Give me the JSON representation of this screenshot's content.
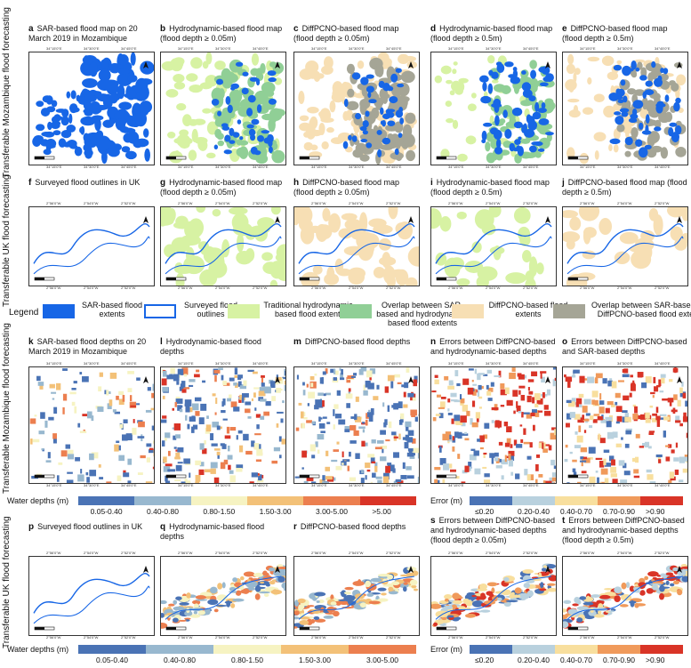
{
  "row_labels": {
    "r1": "Transferable Mozambique flood forecasting",
    "r2": "Transferable UK flood forecasting",
    "r3": "Transferable Mozambique flood forecasting",
    "r4": "Transferable UK flood forecasting"
  },
  "panels": {
    "a": {
      "letter": "a",
      "title": "SAR-based flood map on 20 March 2019 in Mozambique"
    },
    "b": {
      "letter": "b",
      "title": "Hydrodynamic-based flood map (flood depth ≥ 0.05m)"
    },
    "c": {
      "letter": "c",
      "title": "DiffPCNO-based flood map (flood depth ≥ 0.05m)"
    },
    "d": {
      "letter": "d",
      "title": "Hydrodynamic-based flood map (flood depth ≥ 0.5m)"
    },
    "e": {
      "letter": "e",
      "title": "DiffPCNO-based flood map (flood depth ≥ 0.5m)"
    },
    "f": {
      "letter": "f",
      "title": "Surveyed flood outlines in UK"
    },
    "g": {
      "letter": "g",
      "title": "Hydrodynamic-based flood map (flood depth ≥ 0.05m)"
    },
    "h": {
      "letter": "h",
      "title": "DiffPCNO-based flood map (flood depth ≥ 0.05m)"
    },
    "i": {
      "letter": "i",
      "title": "Hydrodynamic-based flood map (flood depth ≥ 0.5m)"
    },
    "j": {
      "letter": "j",
      "title": "DiffPCNO-based flood map (flood depth ≥ 0.5m)"
    },
    "k": {
      "letter": "k",
      "title": "SAR-based flood depths on 20 March 2019 in Mozambique"
    },
    "l": {
      "letter": "l",
      "title": "Hydrodynamic-based flood depths"
    },
    "m": {
      "letter": "m",
      "title": "DiffPCNO-based flood depths"
    },
    "n": {
      "letter": "n",
      "title": "Errors between DiffPCNO-based and hydrodynamic-based depths"
    },
    "o": {
      "letter": "o",
      "title": "Errors between DiffPCNO-based and SAR-based depths"
    },
    "p": {
      "letter": "p",
      "title": "Surveyed flood outlines in UK"
    },
    "q": {
      "letter": "q",
      "title": "Hydrodynamic-based flood depths"
    },
    "r": {
      "letter": "r",
      "title": "DiffPCNO-based flood depths"
    },
    "s": {
      "letter": "s",
      "title": "Errors between DiffPCNO-based and hydrodynamic-based depths (flood depth ≥ 0.05m)"
    },
    "t": {
      "letter": "t",
      "title": "Errors between DiffPCNO-based and hydrodynamic-based depths (flood depth ≥ 0.5m)"
    }
  },
  "coords": {
    "moz_lon": [
      "34°15'0\"E",
      "34°30'0\"E",
      "34°45'0\"E"
    ],
    "moz_lat": [
      "19°45'0\"S",
      "20°0'0\"S",
      "20°15'0\"S"
    ],
    "uk_lon": [
      "2°56'0\"W",
      "2°54'0\"W",
      "2°52'0\"W"
    ],
    "uk_lat": [
      "54°54'0\"N",
      "54°53'0\"N"
    ]
  },
  "legend": {
    "title": "Legend",
    "items": [
      {
        "label": "SAR-based flood extents",
        "color": "#1766e6"
      },
      {
        "label": "Surveyed flood outlines",
        "color": "#1766e6"
      },
      {
        "label": "Traditional hydrodynamic-based flood extents",
        "color": "#d7f2a3"
      },
      {
        "label": "Overlap between SAR-based and hydrodynamic-based flood extents",
        "color": "#90cf96"
      },
      {
        "label": "DiffPCNO-based flood extents",
        "color": "#f7dfb4"
      },
      {
        "label": "Overlap between SAR-based and DiffPCNO-based flood extents",
        "color": "#a5a596"
      }
    ]
  },
  "colorbars": {
    "depth_title": "Water depths (m)",
    "depth_labels": [
      "0.05-0.40",
      "0.40-0.80",
      "0.80-1.50",
      "1.50-3.00",
      "3.00-5.00",
      ">5.00"
    ],
    "depth_labels_uk": [
      "0.05-0.40",
      "0.40-0.80",
      "0.80-1.50",
      "1.50-3.00",
      "3.00-5.00"
    ],
    "depth_colors": [
      "#4a73b5",
      "#98b8cf",
      "#f6f3c2",
      "#f3c178",
      "#ec7f4f",
      "#d93427"
    ],
    "error_title": "Error (m)",
    "error_labels": [
      "≤0.20",
      "0.20-0.40",
      "0.40-0.70",
      "0.70-0.90",
      ">0.90"
    ],
    "error_colors": [
      "#4a73b5",
      "#b9d1de",
      "#f8df9e",
      "#f09a5b",
      "#d93427"
    ]
  }
}
